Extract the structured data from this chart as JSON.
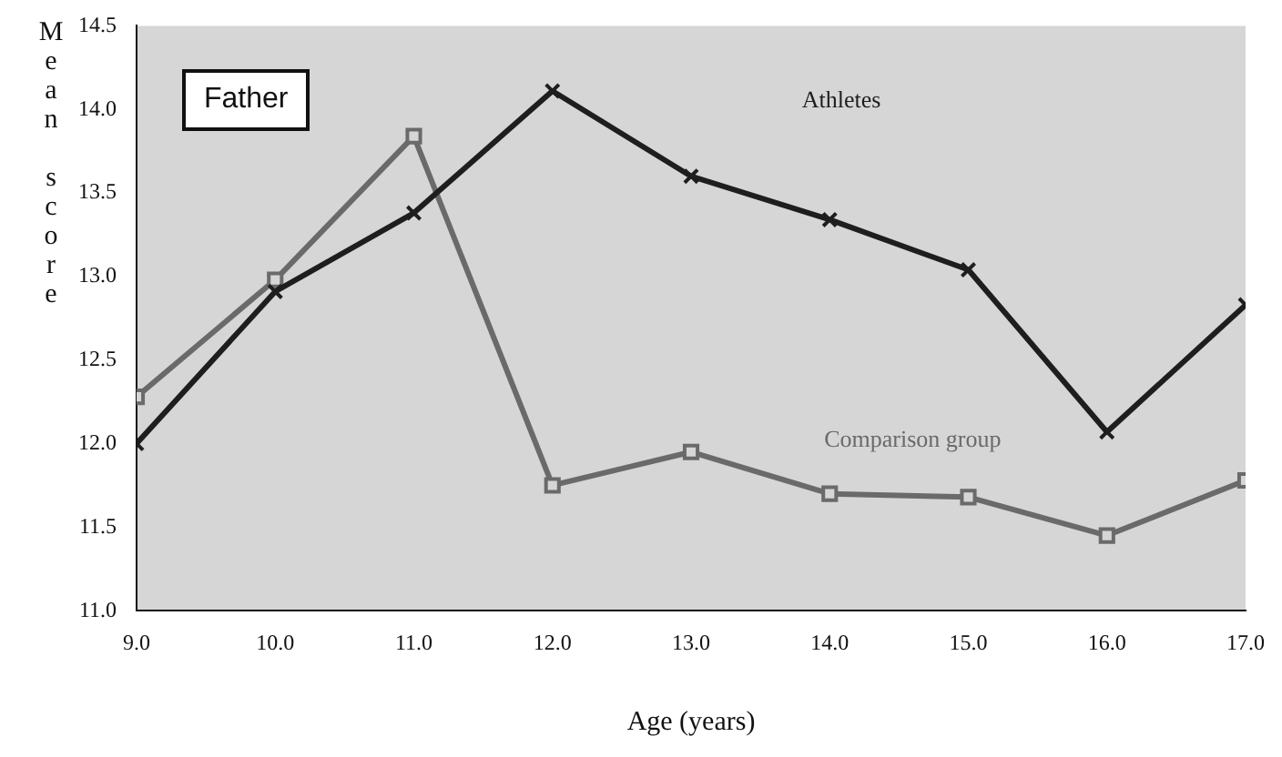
{
  "chart_data": {
    "type": "line",
    "annotations": [
      "Father"
    ],
    "xlabel": "Age (years)",
    "ylabel": "Mean score",
    "x": [
      9,
      10,
      11,
      12,
      13,
      14,
      15,
      16,
      17
    ],
    "series": [
      {
        "name": "Athletes",
        "color": "#1e1e1e",
        "marker": "cross",
        "values": [
          12.0,
          12.91,
          13.38,
          14.11,
          13.6,
          13.34,
          13.04,
          12.07,
          12.83
        ]
      },
      {
        "name": "Comparison group",
        "color": "#6a6a6a",
        "marker": "square",
        "values": [
          12.28,
          12.98,
          13.84,
          11.75,
          11.95,
          11.7,
          11.68,
          11.45,
          11.78
        ]
      }
    ],
    "xlim": [
      9,
      17
    ],
    "xticks": [
      {
        "value": 9,
        "label": "9.0"
      },
      {
        "value": 10,
        "label": "10.0"
      },
      {
        "value": 11,
        "label": "11.0"
      },
      {
        "value": 12,
        "label": "12.0"
      },
      {
        "value": 13,
        "label": "13.0"
      },
      {
        "value": 14,
        "label": "14.0"
      },
      {
        "value": 15,
        "label": "15.0"
      },
      {
        "value": 16,
        "label": "16.0"
      },
      {
        "value": 17,
        "label": "17.0"
      }
    ],
    "ylim": [
      11,
      14.5
    ],
    "yticks": [
      {
        "value": 11,
        "label": "11.0"
      },
      {
        "value": 11.5,
        "label": "11.5"
      },
      {
        "value": 12,
        "label": "12.0"
      },
      {
        "value": 12.5,
        "label": "12.5"
      },
      {
        "value": 13,
        "label": "13.0"
      },
      {
        "value": 13.5,
        "label": "13.5"
      },
      {
        "value": 14,
        "label": "14.0"
      },
      {
        "value": 14.5,
        "label": "14.5"
      }
    ],
    "grid": false,
    "legend": false,
    "line_style": "solid"
  }
}
